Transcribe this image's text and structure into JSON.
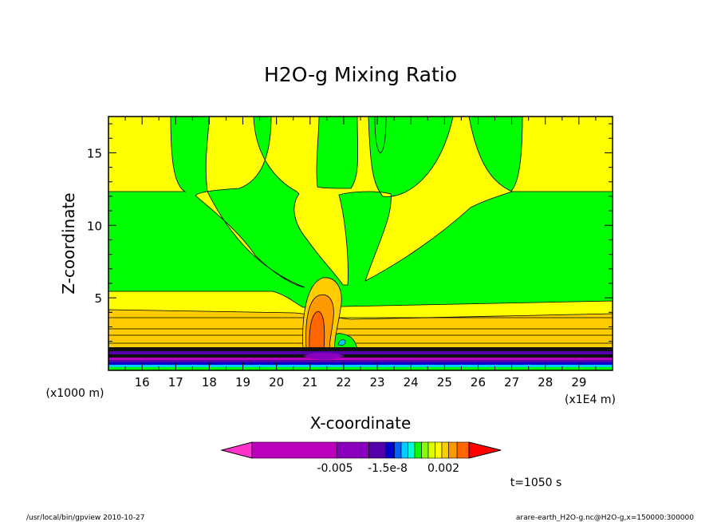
{
  "chart_data": {
    "type": "heatmap",
    "title": "H2O-g Mixing Ratio",
    "xlabel": "X-coordinate",
    "ylabel": "Z-coordinate",
    "x_unit": "(x1E4 m)",
    "y_unit": "(x1000 m)",
    "xlim": [
      15.0,
      30.0
    ],
    "ylim": [
      0,
      17.5
    ],
    "x_ticks": [
      "16",
      "17",
      "18",
      "19",
      "20",
      "21",
      "22",
      "23",
      "24",
      "25",
      "26",
      "27",
      "28",
      "29"
    ],
    "y_ticks": [
      "5",
      "10",
      "15"
    ],
    "colorbar": {
      "colors": [
        "#ff33cc",
        "#bb00bb",
        "#8800bb",
        "#5500aa",
        "#0000cc",
        "#0066ff",
        "#00ccff",
        "#00ffcc",
        "#00ff00",
        "#88ff00",
        "#ddff00",
        "#ffff00",
        "#ffcc00",
        "#ff9900",
        "#ff6600",
        "#ff0000"
      ],
      "tick_labels": [
        "-0.005",
        "-1.5e-8",
        "0.002"
      ]
    },
    "time_label": "t=1050 s",
    "footer_left": "/usr/local/bin/gpview  2010-10-27",
    "footer_right": "arare-earth_H2O-g.nc@H2O-g,x=150000:300000"
  }
}
